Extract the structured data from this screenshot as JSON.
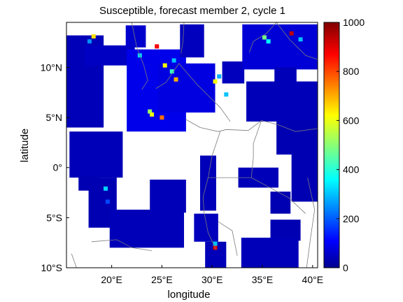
{
  "chart_data": {
    "type": "heatmap",
    "title": "Susceptible, forecast member 2, cycle 1",
    "xlabel": "longitude",
    "ylabel": "latitude",
    "x_range": [
      15.5,
      40.5
    ],
    "y_range": [
      -10,
      14.5
    ],
    "x_ticks": [
      {
        "value": 20,
        "label": "20°E"
      },
      {
        "value": 25,
        "label": "25°E"
      },
      {
        "value": 30,
        "label": "30°E"
      },
      {
        "value": 35,
        "label": "35°E"
      },
      {
        "value": 40,
        "label": "40°E"
      }
    ],
    "y_ticks": [
      {
        "value": 10,
        "label": "10°N"
      },
      {
        "value": 5,
        "label": "5°N"
      },
      {
        "value": 0,
        "label": "0°"
      },
      {
        "value": -5,
        "label": "5°S"
      },
      {
        "value": -10,
        "label": "10°S"
      }
    ],
    "colorbar": {
      "min": 0,
      "max": 1000,
      "ticks": [
        0,
        200,
        400,
        600,
        800,
        1000
      ],
      "colormap": "jet"
    },
    "low_value_fill": "#0000c8",
    "regions": [
      {
        "lon": [
          15.5,
          19.2
        ],
        "lat": [
          4.0,
          13.2
        ],
        "value": 40
      },
      {
        "lon": [
          17.3,
          22.3
        ],
        "lat": [
          10.2,
          12.2
        ],
        "value": 50
      },
      {
        "lon": [
          21.4,
          23.4
        ],
        "lat": [
          12.0,
          14.2
        ],
        "value": 60
      },
      {
        "lon": [
          21.5,
          27.4
        ],
        "lat": [
          3.6,
          11.8
        ],
        "value": 90
      },
      {
        "lon": [
          24.6,
          30.3
        ],
        "lat": [
          5.5,
          10.4
        ],
        "value": 80
      },
      {
        "lon": [
          26.8,
          29.2
        ],
        "lat": [
          11.0,
          14.3
        ],
        "value": 45
      },
      {
        "lon": [
          15.8,
          21.1
        ],
        "lat": [
          -1.0,
          3.6
        ],
        "value": 40
      },
      {
        "lon": [
          16.7,
          18.8
        ],
        "lat": [
          -2.3,
          -0.9
        ],
        "value": 35
      },
      {
        "lon": [
          17.7,
          20.5
        ],
        "lat": [
          -6.0,
          -1.0
        ],
        "value": 35
      },
      {
        "lon": [
          19.8,
          27.2
        ],
        "lat": [
          -8.0,
          -4.2
        ],
        "value": 40
      },
      {
        "lon": [
          23.8,
          27.4
        ],
        "lat": [
          -4.5,
          -1.2
        ],
        "value": 40
      },
      {
        "lon": [
          28.8,
          30.4
        ],
        "lat": [
          -4.3,
          1.2
        ],
        "value": 40
      },
      {
        "lon": [
          28.2,
          30.6
        ],
        "lat": [
          -7.4,
          -4.6
        ],
        "value": 45
      },
      {
        "lon": [
          29.3,
          31.4
        ],
        "lat": [
          -10.0,
          -7.4
        ],
        "value": 40
      },
      {
        "lon": [
          31.0,
          33.2
        ],
        "lat": [
          8.4,
          10.6
        ],
        "value": 45
      },
      {
        "lon": [
          33.0,
          40.5
        ],
        "lat": [
          9.8,
          14.3
        ],
        "value": 70
      },
      {
        "lon": [
          33.4,
          40.5
        ],
        "lat": [
          4.6,
          8.6
        ],
        "value": 40
      },
      {
        "lon": [
          36.2,
          38.4
        ],
        "lat": [
          8.4,
          10.0
        ],
        "value": 40
      },
      {
        "lon": [
          36.4,
          40.5
        ],
        "lat": [
          1.3,
          4.7
        ],
        "value": 35
      },
      {
        "lon": [
          37.9,
          40.5
        ],
        "lat": [
          -3.4,
          1.5
        ],
        "value": 35
      },
      {
        "lon": [
          32.6,
          36.6
        ],
        "lat": [
          -2.0,
          0.0
        ],
        "value": 40
      },
      {
        "lon": [
          35.8,
          38.8
        ],
        "lat": [
          -7.3,
          -5.2
        ],
        "value": 35
      },
      {
        "lon": [
          32.9,
          38.6
        ],
        "lat": [
          -10.0,
          -7.0
        ],
        "value": 40
      },
      {
        "lon": [
          35.8,
          37.8
        ],
        "lat": [
          -4.6,
          -2.4
        ],
        "value": 35
      }
    ],
    "hotspots": [
      {
        "lon": 23.8,
        "lat": 5.6,
        "value": 520
      },
      {
        "lon": 25.0,
        "lat": 5.0,
        "value": 760
      },
      {
        "lon": 24.0,
        "lat": 5.3,
        "value": 600
      },
      {
        "lon": 25.3,
        "lat": 10.2,
        "value": 620
      },
      {
        "lon": 26.4,
        "lat": 8.8,
        "value": 700
      },
      {
        "lon": 26.0,
        "lat": 9.6,
        "value": 420
      },
      {
        "lon": 24.5,
        "lat": 12.1,
        "value": 880
      },
      {
        "lon": 26.2,
        "lat": 10.7,
        "value": 300
      },
      {
        "lon": 22.8,
        "lat": 11.2,
        "value": 320
      },
      {
        "lon": 18.2,
        "lat": 13.1,
        "value": 650
      },
      {
        "lon": 17.8,
        "lat": 12.6,
        "value": 250
      },
      {
        "lon": 35.2,
        "lat": 13.0,
        "value": 480
      },
      {
        "lon": 35.6,
        "lat": 12.6,
        "value": 360
      },
      {
        "lon": 37.9,
        "lat": 13.4,
        "value": 940
      },
      {
        "lon": 38.8,
        "lat": 12.8,
        "value": 300
      },
      {
        "lon": 30.3,
        "lat": 8.6,
        "value": 620
      },
      {
        "lon": 30.7,
        "lat": 9.1,
        "value": 280
      },
      {
        "lon": 31.4,
        "lat": 7.3,
        "value": 300
      },
      {
        "lon": 19.4,
        "lat": -2.1,
        "value": 320
      },
      {
        "lon": 19.6,
        "lat": -3.4,
        "value": 180
      },
      {
        "lon": 30.3,
        "lat": -8.0,
        "value": 900
      },
      {
        "lon": 30.3,
        "lat": -7.6,
        "value": 300
      }
    ],
    "boundaries": [
      [
        [
          22.0,
          14.5
        ],
        [
          22.5,
          12.0
        ],
        [
          23.2,
          10.2
        ],
        [
          23.6,
          8.7
        ],
        [
          23.0,
          7.8
        ]
      ],
      [
        [
          27.2,
          14.5
        ],
        [
          27.1,
          12.6
        ],
        [
          26.9,
          11.4
        ]
      ],
      [
        [
          24.4,
          7.9
        ],
        [
          25.4,
          8.5
        ],
        [
          26.7,
          10.4
        ],
        [
          27.2,
          9.8
        ],
        [
          28.5,
          8.3
        ],
        [
          30.8,
          6.0
        ],
        [
          31.8,
          4.6
        ]
      ],
      [
        [
          27.4,
          4.8
        ],
        [
          28.8,
          4.0
        ],
        [
          30.6,
          3.6
        ],
        [
          31.4,
          3.8
        ],
        [
          33.6,
          3.7
        ],
        [
          34.9,
          4.7
        ]
      ],
      [
        [
          34.9,
          4.7
        ],
        [
          36.5,
          4.3
        ],
        [
          38.3,
          3.6
        ],
        [
          40.5,
          3.9
        ]
      ],
      [
        [
          34.9,
          4.7
        ],
        [
          34.1,
          2.4
        ],
        [
          34.1,
          1.0
        ],
        [
          33.9,
          -1.0
        ]
      ],
      [
        [
          30.8,
          3.6
        ],
        [
          30.0,
          1.2
        ],
        [
          29.6,
          -1.0
        ],
        [
          29.1,
          -2.9
        ],
        [
          29.2,
          -4.5
        ],
        [
          29.6,
          -6.5
        ],
        [
          30.4,
          -8.2
        ]
      ],
      [
        [
          29.6,
          -1.0
        ],
        [
          31.0,
          -1.0
        ],
        [
          33.9,
          -1.0
        ],
        [
          37.6,
          -3.0
        ],
        [
          39.3,
          -4.6
        ]
      ],
      [
        [
          33.7,
          11.5
        ],
        [
          34.1,
          12.6
        ],
        [
          35.4,
          13.4
        ],
        [
          36.4,
          14.5
        ]
      ],
      [
        [
          36.4,
          14.5
        ],
        [
          37.7,
          12.8
        ],
        [
          39.3,
          11.2
        ],
        [
          40.5,
          10.8
        ]
      ],
      [
        [
          32.5,
          -8.8
        ],
        [
          32.0,
          -6.3
        ],
        [
          30.6,
          -5.4
        ]
      ],
      [
        [
          24.0,
          -8.3
        ],
        [
          22.0,
          -8.0
        ],
        [
          20.5,
          -7.2
        ],
        [
          18.0,
          -7.4
        ]
      ],
      [
        [
          16.0,
          -8.6
        ],
        [
          16.5,
          -10.0
        ]
      ],
      [
        [
          39.5,
          -1.0
        ],
        [
          40.2,
          -4.2
        ],
        [
          39.8,
          -7.0
        ],
        [
          39.4,
          -10.0
        ]
      ]
    ]
  }
}
